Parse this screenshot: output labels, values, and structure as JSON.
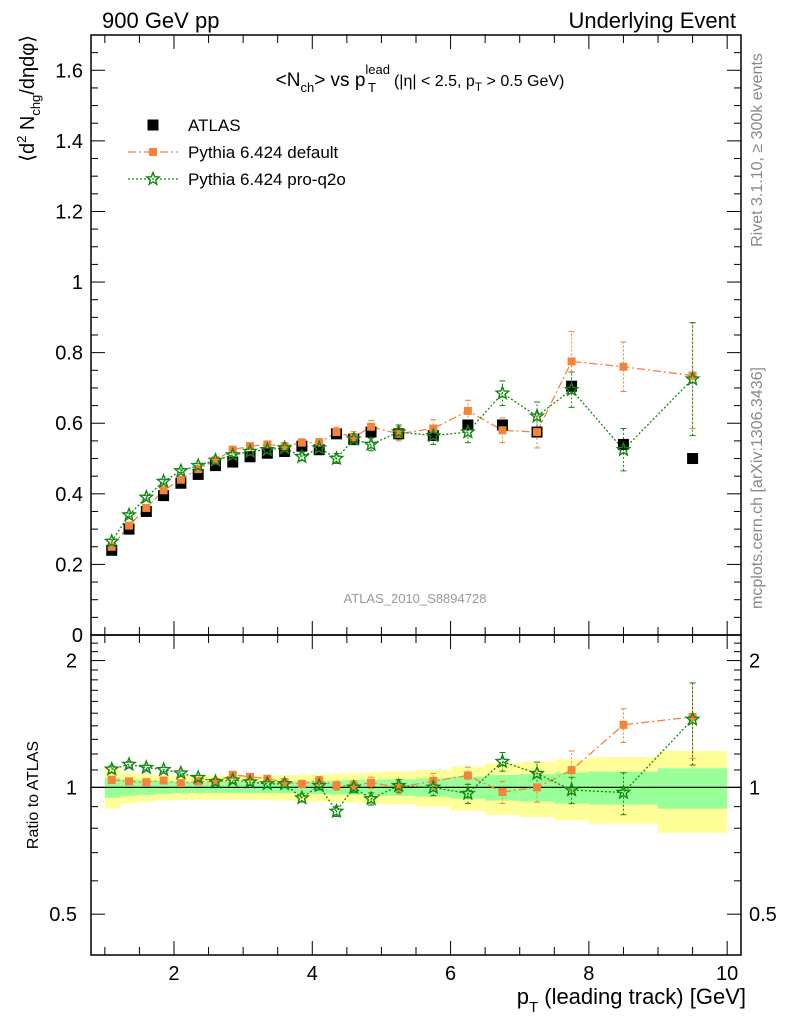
{
  "header": {
    "left": "900 GeV pp",
    "right": "Underlying Event"
  },
  "chart_data": {
    "type": "scatter",
    "title": "<N_ch> vs p_T^lead (|η| < 2.5, p_T > 0.5 GeV)",
    "title_parts": {
      "main_a": "<N",
      "main_a_sub": "ch",
      "main_b": "> vs p",
      "main_b_sup": "lead",
      "main_b_sub": "T",
      "cuts_a": "(|η| < 2.5, p",
      "cuts_sub": "T",
      "cuts_b": " > 0.5 GeV)"
    },
    "xlabel": "p_T (leading track) [GeV]",
    "xlabel_parts": {
      "a": "p",
      "sub": "T",
      "b": " (leading track) [GeV]"
    },
    "ylabel": "⟨d² N_chg/dηdφ⟩",
    "ylabel_parts": {
      "a": "⟨d",
      "sup": "2",
      "b": " N",
      "sub": "chg",
      "c": "/dηdφ⟩"
    },
    "ratio_ylabel": "Ratio to ATLAS",
    "xlim": [
      0.8,
      10.2
    ],
    "ylim": [
      0,
      1.7
    ],
    "ratio_ylim": [
      0.4,
      2.3
    ],
    "ratio_scale": "log",
    "x_ticks": [
      2,
      4,
      6,
      8,
      10
    ],
    "y_ticks": [
      0,
      0.2,
      0.4,
      0.6,
      0.8,
      1,
      1.2,
      1.4,
      1.6
    ],
    "y_tick_labels": [
      "0",
      "0.2",
      "0.4",
      "0.6",
      "0.8",
      "1",
      "1.2",
      "1.4",
      "1.6"
    ],
    "ratio_ticks": [
      0.5,
      1,
      2
    ],
    "ratio_tick_labels": [
      "0.5",
      "1",
      "2"
    ],
    "legend_position": "top-left",
    "watermark": "ATLAS_2010_S8894728",
    "side_text_top": "Rivet 3.1.10, ≥ 300k events",
    "side_text_bottom": "mcplots.cern.ch [arXiv:1306.3436]",
    "colors": {
      "atlas": "#000000",
      "default": "#f5833a",
      "proq2o": "#118811",
      "band_inner": "#99ff99",
      "band_outer": "#ffff99"
    },
    "series": [
      {
        "name": "ATLAS",
        "marker": "square",
        "x": [
          1.1,
          1.35,
          1.6,
          1.85,
          2.1,
          2.35,
          2.6,
          2.85,
          3.1,
          3.35,
          3.6,
          3.85,
          4.1,
          4.35,
          4.6,
          4.85,
          5.25,
          5.75,
          6.25,
          6.75,
          7.25,
          7.75,
          8.5,
          9.5
        ],
        "y": [
          0.24,
          0.3,
          0.35,
          0.395,
          0.43,
          0.455,
          0.48,
          0.49,
          0.505,
          0.515,
          0.52,
          0.535,
          0.525,
          0.57,
          0.555,
          0.575,
          0.57,
          0.565,
          0.595,
          0.595,
          0.575,
          0.705,
          0.54,
          0.5
        ]
      },
      {
        "name": "Pythia 6.424 default",
        "marker": "filled-square",
        "x": [
          1.1,
          1.35,
          1.6,
          1.85,
          2.1,
          2.35,
          2.6,
          2.85,
          3.1,
          3.35,
          3.6,
          3.85,
          4.1,
          4.35,
          4.6,
          4.85,
          5.25,
          5.75,
          6.25,
          6.75,
          7.25,
          7.75,
          8.5,
          9.5
        ],
        "y": [
          0.25,
          0.31,
          0.36,
          0.41,
          0.44,
          0.47,
          0.495,
          0.525,
          0.535,
          0.54,
          0.535,
          0.545,
          0.545,
          0.575,
          0.56,
          0.59,
          0.57,
          0.585,
          0.635,
          0.58,
          0.575,
          0.775,
          0.76,
          0.735
        ],
        "err": [
          0.005,
          0.005,
          0.005,
          0.005,
          0.005,
          0.005,
          0.006,
          0.007,
          0.008,
          0.009,
          0.01,
          0.011,
          0.012,
          0.014,
          0.016,
          0.018,
          0.02,
          0.025,
          0.03,
          0.035,
          0.045,
          0.085,
          0.07,
          0.15
        ]
      },
      {
        "name": "Pythia 6.424 pro-q2o",
        "marker": "star",
        "x": [
          1.1,
          1.35,
          1.6,
          1.85,
          2.1,
          2.35,
          2.6,
          2.85,
          3.1,
          3.35,
          3.6,
          3.85,
          4.1,
          4.35,
          4.6,
          4.85,
          5.25,
          5.75,
          6.25,
          6.75,
          7.25,
          7.75,
          8.5,
          9.5
        ],
        "y": [
          0.265,
          0.34,
          0.39,
          0.435,
          0.465,
          0.48,
          0.495,
          0.51,
          0.52,
          0.525,
          0.53,
          0.505,
          0.53,
          0.5,
          0.555,
          0.54,
          0.575,
          0.565,
          0.575,
          0.685,
          0.62,
          0.695,
          0.525,
          0.725
        ],
        "err": [
          0.005,
          0.005,
          0.005,
          0.005,
          0.005,
          0.005,
          0.006,
          0.007,
          0.008,
          0.009,
          0.01,
          0.011,
          0.012,
          0.014,
          0.016,
          0.018,
          0.02,
          0.025,
          0.03,
          0.035,
          0.04,
          0.05,
          0.06,
          0.16
        ]
      }
    ],
    "ratio_bands": {
      "x_edges": [
        1.0,
        1.225,
        1.475,
        1.725,
        1.975,
        2.225,
        2.475,
        2.725,
        2.975,
        3.225,
        3.475,
        3.725,
        3.975,
        4.225,
        4.475,
        4.725,
        5.0,
        5.5,
        6.0,
        6.5,
        7.0,
        7.5,
        8.0,
        9.0,
        10.0
      ],
      "inner": [
        0.055,
        0.045,
        0.04,
        0.035,
        0.032,
        0.03,
        0.03,
        0.03,
        0.03,
        0.03,
        0.032,
        0.034,
        0.036,
        0.038,
        0.04,
        0.042,
        0.045,
        0.05,
        0.06,
        0.07,
        0.075,
        0.085,
        0.09,
        0.11
      ],
      "outer": [
        0.11,
        0.085,
        0.075,
        0.07,
        0.065,
        0.065,
        0.065,
        0.065,
        0.065,
        0.068,
        0.07,
        0.072,
        0.075,
        0.078,
        0.08,
        0.085,
        0.09,
        0.1,
        0.12,
        0.14,
        0.15,
        0.165,
        0.18,
        0.22
      ]
    }
  }
}
